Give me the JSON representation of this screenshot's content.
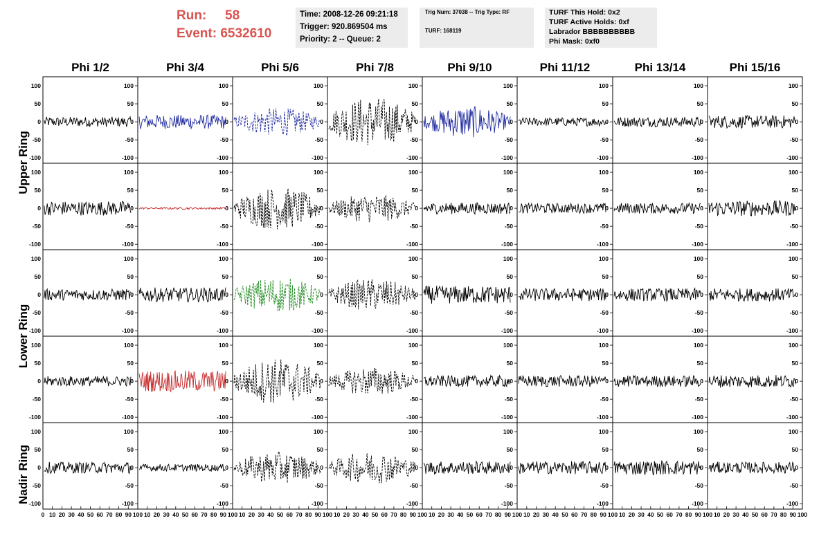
{
  "header": {
    "run_label": "Run:",
    "run_value": "58",
    "event_label": "Event:",
    "event_value": "6532610"
  },
  "info_box_1": {
    "time": "Time: 2008-12-26 09:21:18",
    "trigger": "Trigger: 920.869504 ms",
    "priority": "Priority: 2 -- Queue: 2"
  },
  "info_box_2": {
    "trig": "Trig Num: 37038 -- Trig Type: RF",
    "turf": "TURF: 168119"
  },
  "info_box_3": {
    "this_hold": "TURF This Hold: 0x2",
    "active_holds": "TURF Active Holds: 0xf",
    "labrador": "Labrador BBBBBBBBBB",
    "phi_mask": "Phi Mask: 0xf0"
  },
  "columns": [
    "Phi 1/2",
    "Phi 3/4",
    "Phi 5/6",
    "Phi 7/8",
    "Phi 9/10",
    "Phi 11/12",
    "Phi 13/14",
    "Phi 15/16"
  ],
  "rows": [
    "Upper Ring",
    "Lower Ring",
    "Nadir Ring"
  ],
  "colors": {
    "run_text": "#d9534f",
    "box_bg": "#ececec",
    "trace_black": "#000000",
    "trace_blue": "#1f2a9e",
    "trace_red": "#c62a2a",
    "trace_green": "#1f8a1f"
  },
  "chart_data": {
    "type": "line",
    "y_ticks": [
      "100",
      "50",
      "0",
      "-50",
      "-100"
    ],
    "ylim": [
      -115,
      125
    ],
    "x_ticks": [
      "0",
      "10",
      "20",
      "30",
      "40",
      "50",
      "60",
      "70",
      "80",
      "90",
      "100"
    ],
    "xlim": [
      0,
      100
    ],
    "panels": [
      {
        "row": 0,
        "col": 0,
        "color": "black",
        "style": "solid",
        "amp": 14
      },
      {
        "row": 0,
        "col": 1,
        "color": "blue",
        "style": "solid",
        "amp": 20
      },
      {
        "row": 0,
        "col": 2,
        "color": "blue",
        "style": "dashed",
        "amp": 40
      },
      {
        "row": 0,
        "col": 3,
        "color": "black",
        "style": "dashed",
        "amp": 70
      },
      {
        "row": 0,
        "col": 4,
        "color": "blue",
        "style": "solid",
        "amp": 45
      },
      {
        "row": 0,
        "col": 5,
        "color": "black",
        "style": "solid",
        "amp": 12
      },
      {
        "row": 0,
        "col": 6,
        "color": "black",
        "style": "solid",
        "amp": 14
      },
      {
        "row": 0,
        "col": 7,
        "color": "black",
        "style": "solid",
        "amp": 18
      },
      {
        "row": 1,
        "col": 0,
        "color": "black",
        "style": "solid",
        "amp": 20
      },
      {
        "row": 1,
        "col": 1,
        "color": "red",
        "style": "solid",
        "amp": 3
      },
      {
        "row": 1,
        "col": 2,
        "color": "black",
        "style": "dashed",
        "amp": 60
      },
      {
        "row": 1,
        "col": 3,
        "color": "black",
        "style": "dashed",
        "amp": 40
      },
      {
        "row": 1,
        "col": 4,
        "color": "black",
        "style": "solid",
        "amp": 16
      },
      {
        "row": 1,
        "col": 5,
        "color": "black",
        "style": "solid",
        "amp": 14
      },
      {
        "row": 1,
        "col": 6,
        "color": "black",
        "style": "solid",
        "amp": 15
      },
      {
        "row": 1,
        "col": 7,
        "color": "black",
        "style": "solid",
        "amp": 22
      },
      {
        "row": 2,
        "col": 0,
        "color": "black",
        "style": "solid",
        "amp": 16
      },
      {
        "row": 2,
        "col": 1,
        "color": "black",
        "style": "solid",
        "amp": 20
      },
      {
        "row": 2,
        "col": 2,
        "color": "green",
        "style": "dashed",
        "amp": 50
      },
      {
        "row": 2,
        "col": 3,
        "color": "black",
        "style": "dashed",
        "amp": 45
      },
      {
        "row": 2,
        "col": 4,
        "color": "black",
        "style": "solid",
        "amp": 25
      },
      {
        "row": 2,
        "col": 5,
        "color": "black",
        "style": "solid",
        "amp": 18
      },
      {
        "row": 2,
        "col": 6,
        "color": "black",
        "style": "solid",
        "amp": 18
      },
      {
        "row": 2,
        "col": 7,
        "color": "black",
        "style": "solid",
        "amp": 18
      },
      {
        "row": 3,
        "col": 0,
        "color": "black",
        "style": "solid",
        "amp": 14
      },
      {
        "row": 3,
        "col": 1,
        "color": "red",
        "style": "solid",
        "amp": 30
      },
      {
        "row": 3,
        "col": 2,
        "color": "black",
        "style": "dashed",
        "amp": 65
      },
      {
        "row": 3,
        "col": 3,
        "color": "black",
        "style": "dashed",
        "amp": 40
      },
      {
        "row": 3,
        "col": 4,
        "color": "black",
        "style": "solid",
        "amp": 16
      },
      {
        "row": 3,
        "col": 5,
        "color": "black",
        "style": "solid",
        "amp": 16
      },
      {
        "row": 3,
        "col": 6,
        "color": "black",
        "style": "solid",
        "amp": 16
      },
      {
        "row": 3,
        "col": 7,
        "color": "black",
        "style": "solid",
        "amp": 18
      },
      {
        "row": 4,
        "col": 0,
        "color": "black",
        "style": "solid",
        "amp": 16
      },
      {
        "row": 4,
        "col": 1,
        "color": "black",
        "style": "solid",
        "amp": 10
      },
      {
        "row": 4,
        "col": 2,
        "color": "black",
        "style": "dashed",
        "amp": 45
      },
      {
        "row": 4,
        "col": 3,
        "color": "black",
        "style": "dashed",
        "amp": 45
      },
      {
        "row": 4,
        "col": 4,
        "color": "black",
        "style": "solid",
        "amp": 18
      },
      {
        "row": 4,
        "col": 5,
        "color": "black",
        "style": "solid",
        "amp": 18
      },
      {
        "row": 4,
        "col": 6,
        "color": "black",
        "style": "solid",
        "amp": 20
      },
      {
        "row": 4,
        "col": 7,
        "color": "black",
        "style": "solid",
        "amp": 16
      }
    ]
  }
}
